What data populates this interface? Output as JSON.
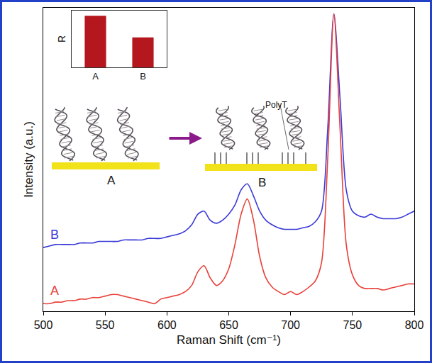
{
  "chart_data": [
    {
      "type": "line",
      "x_label": "Raman Shift (cm⁻¹)",
      "y_label": "Intensity (a.u.)",
      "xlim": [
        500,
        800
      ],
      "xticks": [
        500,
        550,
        600,
        650,
        700,
        750,
        800
      ],
      "ylim": [
        0,
        100
      ],
      "tick_labels": "x",
      "x": [
        500,
        505,
        510,
        515,
        520,
        525,
        530,
        535,
        540,
        545,
        550,
        555,
        560,
        565,
        570,
        575,
        580,
        585,
        590,
        595,
        600,
        605,
        610,
        615,
        620,
        625,
        630,
        635,
        640,
        645,
        650,
        655,
        660,
        665,
        670,
        675,
        680,
        685,
        690,
        695,
        700,
        705,
        710,
        715,
        720,
        725,
        730,
        735,
        740,
        745,
        750,
        755,
        760,
        765,
        770,
        775,
        780,
        785,
        790,
        795,
        800
      ],
      "series": [
        {
          "name": "B",
          "color": "#3a3ad8",
          "values": [
            21,
            21.5,
            22,
            22,
            22,
            22,
            22.5,
            22.5,
            22.5,
            23,
            23,
            23,
            23,
            23.5,
            23.5,
            23.5,
            23.5,
            24,
            24,
            24,
            24.5,
            25,
            25.5,
            26.5,
            28.5,
            32,
            33,
            30,
            29,
            30,
            32,
            35,
            40,
            42,
            38,
            33,
            30,
            28.5,
            27.5,
            27,
            27,
            27,
            27.5,
            28,
            29.5,
            33,
            60,
            98,
            70,
            40,
            33,
            31.5,
            31,
            32,
            31,
            30.5,
            30.5,
            30.5,
            31,
            32,
            33
          ]
        },
        {
          "name": "A",
          "color": "#e8403a",
          "values": [
            2.5,
            2.5,
            3,
            3,
            3.5,
            3.5,
            4,
            4,
            4.5,
            4.5,
            5,
            5.5,
            5.5,
            5,
            4.5,
            4,
            3.5,
            3,
            2.5,
            4,
            4.5,
            5,
            5.5,
            6.5,
            8.5,
            13,
            15,
            11,
            8.5,
            10,
            14,
            22,
            32,
            37,
            30,
            18,
            11,
            8,
            6.5,
            5.5,
            6.5,
            5.5,
            6.5,
            8,
            10,
            16,
            50,
            98,
            60,
            22,
            12,
            8.5,
            7.5,
            7.5,
            7.5,
            7,
            7.5,
            8,
            8.5,
            9,
            9
          ]
        }
      ]
    },
    {
      "type": "bar",
      "y_label": "R",
      "categories": [
        "A",
        "B"
      ],
      "values": [
        1.0,
        0.58
      ],
      "ylim": [
        0,
        1.1
      ],
      "tick_labels": "x",
      "color": "#b5171e"
    }
  ],
  "diagram": {
    "labels": [
      "A",
      "B"
    ],
    "annotation": "PolyT"
  }
}
